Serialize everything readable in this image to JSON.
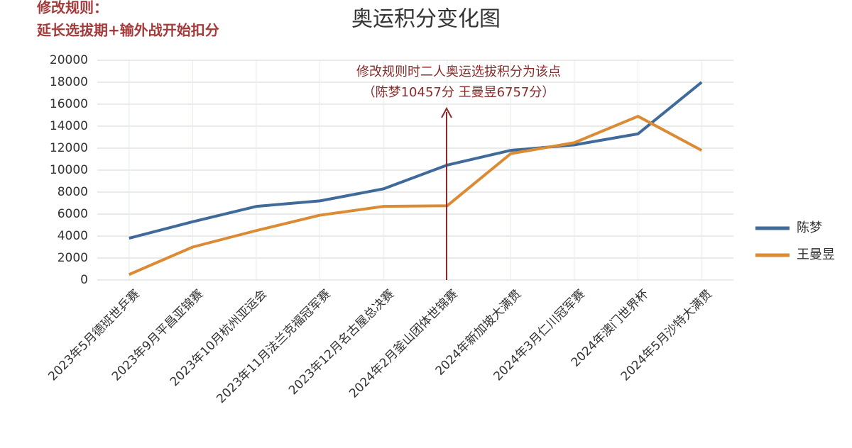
{
  "chart_data": {
    "type": "line",
    "title": "奥运积分变化图",
    "notes": [
      "修改规则：",
      "延长选拔期+输外战开始扣分"
    ],
    "annotation": [
      "修改规则时二人奥运选拔积分为该点",
      "（陈梦10457分 王曼昱6757分）"
    ],
    "categories": [
      "2023年5月德班世乒赛",
      "2023年9月平昌亚锦赛",
      "2023年10月杭州亚运会",
      "2023年11月法兰克福冠军赛",
      "2023年12月名古屋总决赛",
      "2024年2月釜山团体世锦赛",
      "2024年新加坡大满贯",
      "2024年3月仁川冠军赛",
      "2024年澳门世界杯",
      "2024年5月沙特大满贯"
    ],
    "series": [
      {
        "name": "陈梦",
        "color": "#3f6a9a",
        "values": [
          3800,
          5300,
          6700,
          7200,
          8300,
          10457,
          11800,
          12300,
          13300,
          18000
        ]
      },
      {
        "name": "王曼昱",
        "color": "#db8b33",
        "values": [
          500,
          3000,
          4500,
          5900,
          6700,
          6757,
          11500,
          12500,
          14900,
          11800
        ]
      }
    ],
    "ylim": [
      0,
      20000
    ],
    "yticks": [
      0,
      2000,
      4000,
      6000,
      8000,
      10000,
      12000,
      14000,
      16000,
      18000,
      20000
    ],
    "grid": true,
    "legend": "right"
  }
}
